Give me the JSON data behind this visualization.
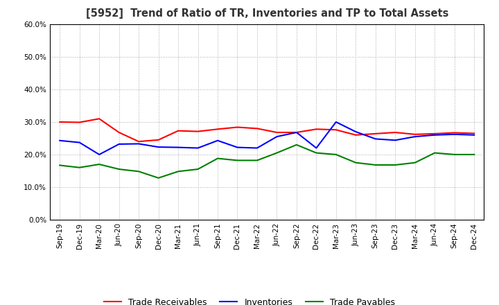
{
  "title": "[5952]  Trend of Ratio of TR, Inventories and TP to Total Assets",
  "x_labels": [
    "Sep-19",
    "Dec-19",
    "Mar-20",
    "Jun-20",
    "Sep-20",
    "Dec-20",
    "Mar-21",
    "Jun-21",
    "Sep-21",
    "Dec-21",
    "Mar-22",
    "Jun-22",
    "Sep-22",
    "Dec-22",
    "Mar-23",
    "Jun-23",
    "Sep-23",
    "Dec-23",
    "Mar-24",
    "Jun-24",
    "Sep-24",
    "Dec-24"
  ],
  "trade_receivables": [
    0.3,
    0.299,
    0.31,
    0.268,
    0.24,
    0.245,
    0.273,
    0.271,
    0.278,
    0.284,
    0.28,
    0.268,
    0.268,
    0.278,
    0.276,
    0.26,
    0.264,
    0.268,
    0.262,
    0.264,
    0.267,
    0.265
  ],
  "inventories": [
    0.243,
    0.237,
    0.2,
    0.232,
    0.233,
    0.223,
    0.222,
    0.22,
    0.243,
    0.222,
    0.22,
    0.255,
    0.268,
    0.22,
    0.3,
    0.27,
    0.248,
    0.244,
    0.255,
    0.26,
    0.262,
    0.26
  ],
  "trade_payables": [
    0.167,
    0.16,
    0.17,
    0.155,
    0.148,
    0.128,
    0.148,
    0.155,
    0.188,
    0.182,
    0.182,
    0.205,
    0.23,
    0.205,
    0.2,
    0.175,
    0.168,
    0.168,
    0.175,
    0.205,
    0.2,
    0.2
  ],
  "tr_color": "#FF0000",
  "inv_color": "#0000FF",
  "tp_color": "#008000",
  "ylim": [
    0.0,
    0.6
  ],
  "yticks": [
    0.0,
    0.1,
    0.2,
    0.3,
    0.4,
    0.5,
    0.6
  ],
  "bg_color": "#FFFFFF",
  "grid_color": "#AAAAAA",
  "legend_labels": [
    "Trade Receivables",
    "Inventories",
    "Trade Payables"
  ]
}
